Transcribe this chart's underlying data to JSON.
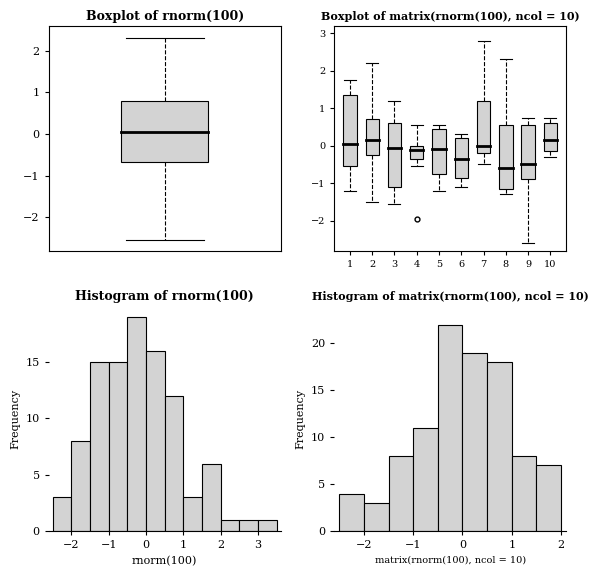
{
  "title1": "Boxplot of rnorm(100)",
  "title2": "Boxplot of matrix(rnorm(100), ncol = 10)",
  "title3": "Histogram of rnorm(100)",
  "title4": "Histogram of matrix(rnorm(100), ncol = 10)",
  "box1": {
    "median": 0.05,
    "q1": -0.68,
    "q3": 0.78,
    "wlo": -2.55,
    "who": 2.3,
    "outliers": []
  },
  "box2_data": [
    {
      "median": 0.05,
      "q1": -0.55,
      "q3": 1.35,
      "wlo": -1.2,
      "who": 1.75,
      "outliers": []
    },
    {
      "median": 0.15,
      "q1": -0.25,
      "q3": 0.72,
      "wlo": -1.5,
      "who": 2.2,
      "outliers": []
    },
    {
      "median": -0.05,
      "q1": -1.1,
      "q3": 0.6,
      "wlo": -1.55,
      "who": 1.2,
      "outliers": []
    },
    {
      "median": -0.12,
      "q1": -0.35,
      "q3": 0.0,
      "wlo": -0.55,
      "who": 0.55,
      "outliers": [
        -1.95
      ]
    },
    {
      "median": -0.1,
      "q1": -0.75,
      "q3": 0.45,
      "wlo": -1.2,
      "who": 0.55,
      "outliers": []
    },
    {
      "median": -0.35,
      "q1": -0.85,
      "q3": 0.2,
      "wlo": -1.1,
      "who": 0.3,
      "outliers": []
    },
    {
      "median": 0.0,
      "q1": -0.2,
      "q3": 1.2,
      "wlo": -0.5,
      "who": 2.8,
      "outliers": []
    },
    {
      "median": -0.6,
      "q1": -1.15,
      "q3": 0.55,
      "wlo": -1.3,
      "who": 2.3,
      "outliers": []
    },
    {
      "median": -0.5,
      "q1": -0.9,
      "q3": 0.55,
      "wlo": -2.6,
      "who": 0.75,
      "outliers": []
    },
    {
      "median": 0.15,
      "q1": -0.15,
      "q3": 0.6,
      "wlo": -0.3,
      "who": 0.75,
      "outliers": []
    }
  ],
  "hist1_bins": [
    -2.5,
    -2.0,
    -1.5,
    -1.0,
    -0.5,
    0.0,
    0.5,
    1.0,
    1.5,
    2.0,
    2.5,
    3.0,
    3.5
  ],
  "hist1_counts": [
    3,
    8,
    15,
    15,
    19,
    16,
    12,
    3,
    6,
    1,
    1,
    1
  ],
  "hist1_xlabel": "rnorm(100)",
  "hist1_yticks": [
    0,
    5,
    10,
    15
  ],
  "hist1_xticks": [
    -2,
    -1,
    0,
    1,
    2,
    3
  ],
  "hist2_bins": [
    -2.5,
    -2.0,
    -1.5,
    -1.0,
    -0.5,
    0.0,
    0.5,
    1.0,
    1.5,
    2.0
  ],
  "hist2_counts": [
    4,
    3,
    8,
    11,
    22,
    19,
    18,
    8,
    7
  ],
  "hist2_xlabel": "matrix(rnorm(100), ncol = 10)",
  "hist2_yticks": [
    0,
    5,
    10,
    15,
    20
  ],
  "hist2_xticks": [
    -2,
    -1,
    0,
    1,
    2
  ],
  "ylabel_hist": "Frequency",
  "box_color": "#d3d3d3",
  "hist_color": "#d3d3d3",
  "bg_color": "#ffffff",
  "box1_yticks": [
    -2,
    -1,
    0,
    1,
    2
  ],
  "box2_yticks": [
    -2,
    -1,
    0,
    1,
    2,
    3
  ]
}
